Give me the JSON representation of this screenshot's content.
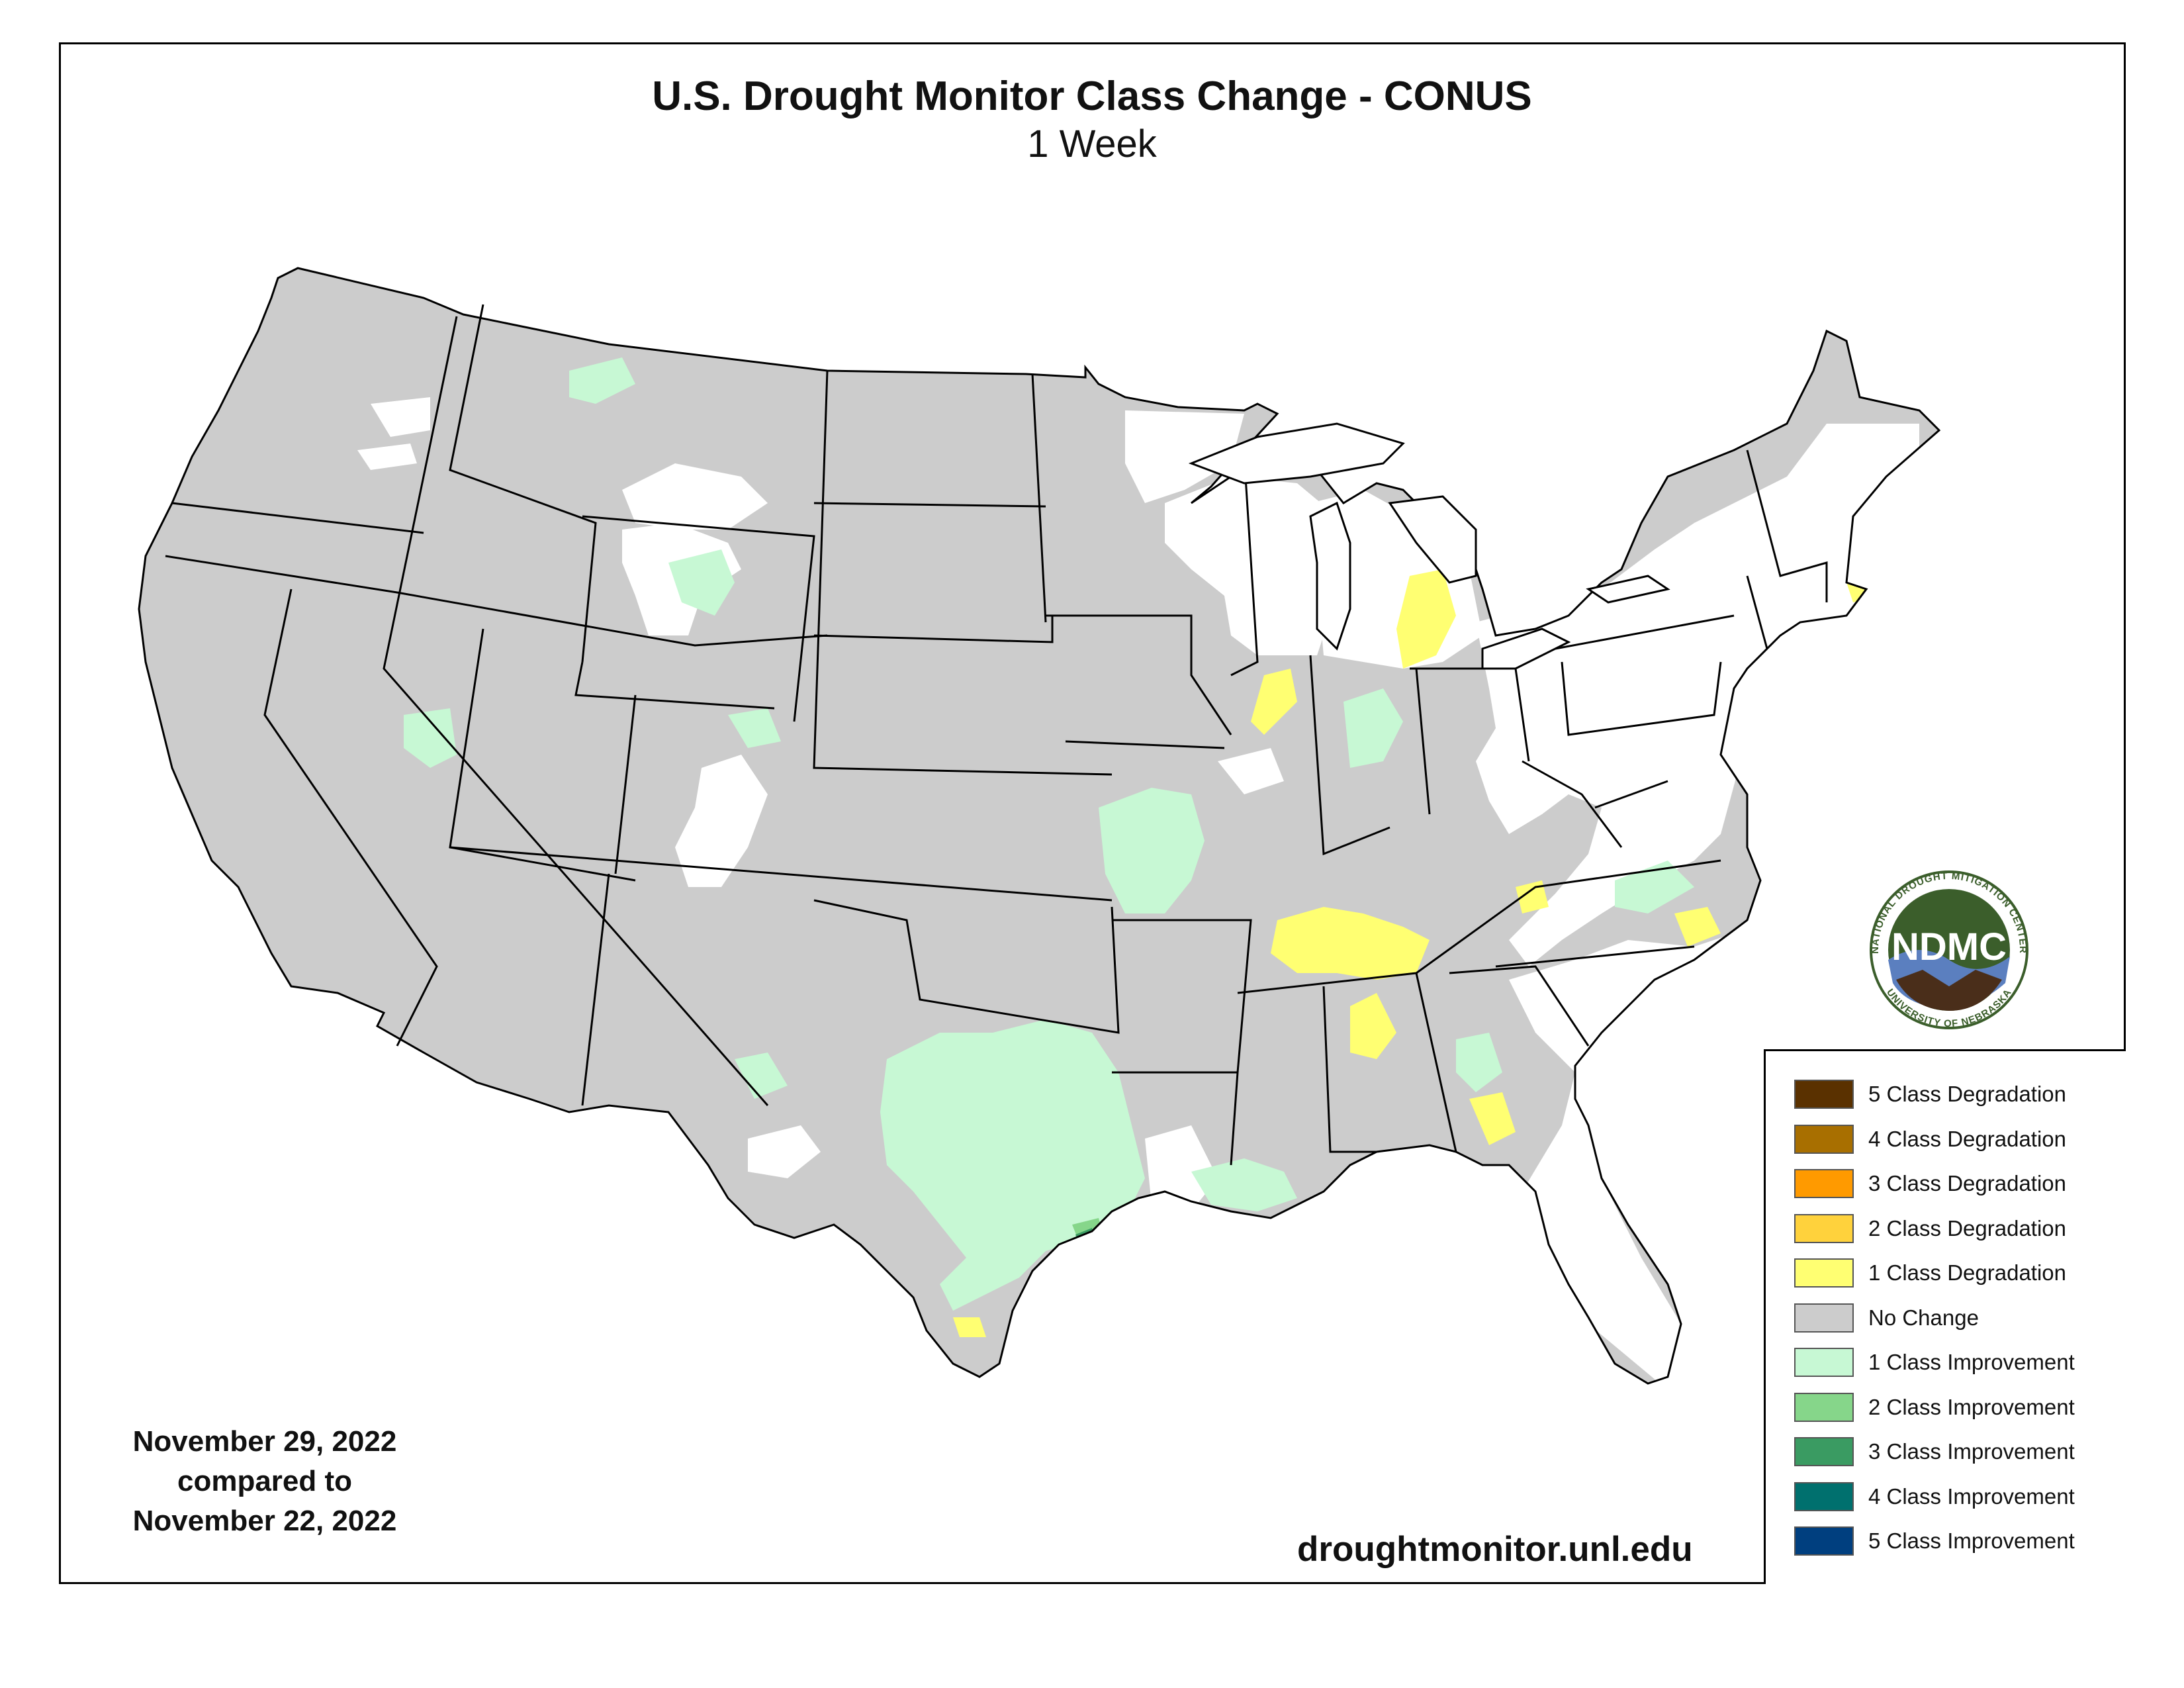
{
  "header": {
    "title": "U.S. Drought Monitor Class Change - CONUS",
    "subtitle": "1 Week"
  },
  "dates": {
    "line1": "November 29, 2022",
    "line2": "compared to",
    "line3": "November 22, 2022"
  },
  "website": "droughtmonitor.unl.edu",
  "logo": {
    "acronym": "NDMC",
    "ring_top": "NATIONAL DROUGHT MITIGATION CENTER",
    "ring_bottom": "UNIVERSITY OF NEBRASKA"
  },
  "legend": {
    "items": [
      {
        "label": "5 Class Degradation",
        "color": "#5a3100"
      },
      {
        "label": "4 Class Degradation",
        "color": "#a86f00"
      },
      {
        "label": "3 Class Degradation",
        "color": "#ff9a00"
      },
      {
        "label": "2 Class Degradation",
        "color": "#ffd23c"
      },
      {
        "label": "1 Class Degradation",
        "color": "#ffff72"
      },
      {
        "label": "No Change",
        "color": "#cccccc"
      },
      {
        "label": "1 Class Improvement",
        "color": "#c7f8d4"
      },
      {
        "label": "2 Class Improvement",
        "color": "#86d68a"
      },
      {
        "label": "3 Class Improvement",
        "color": "#3a9b62"
      },
      {
        "label": "4 Class Improvement",
        "color": "#00706e"
      },
      {
        "label": "5 Class Improvement",
        "color": "#003f7f"
      }
    ]
  },
  "colors": {
    "no_change": "#cccccc",
    "improvement_1": "#c7f8d4",
    "improvement_2": "#86d68a",
    "improvement_3": "#3a9b62",
    "degradation_1": "#ffff72",
    "degradation_2": "#ffd23c",
    "no_drought": "#ffffff",
    "boundary": "#000000",
    "logo_green": "#3b5e2b",
    "logo_brown": "#4a2e1a",
    "logo_blue": "#5b7fbf"
  }
}
